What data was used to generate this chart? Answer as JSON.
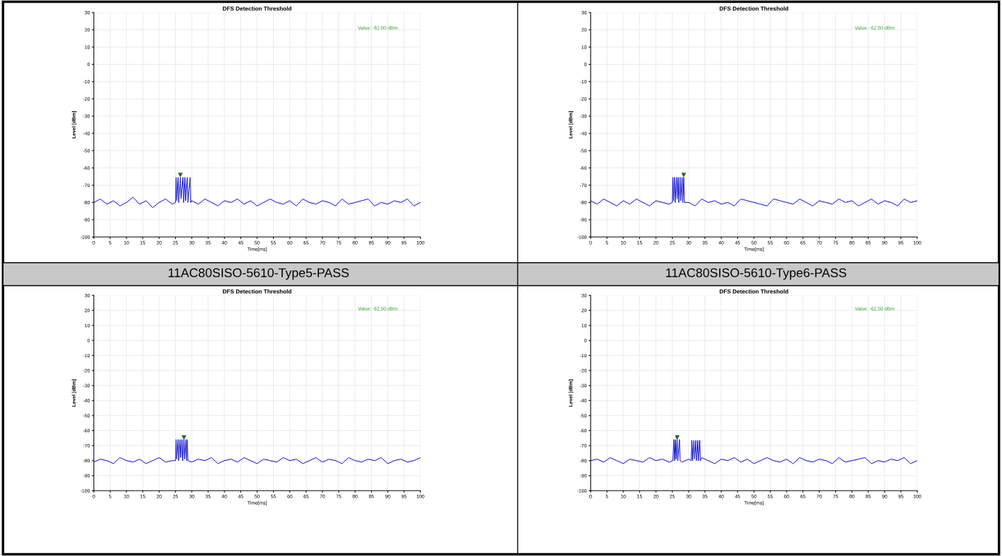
{
  "chart_data": [
    {
      "type": "line",
      "title": "DFS Detection Threshold",
      "subtitle": "11AC80SISO-5610-Type5-PASS",
      "xlabel": "Time[ms]",
      "ylabel": "Level [dBm]",
      "annotations": [
        "Value: -62.60 dBm"
      ],
      "xlim": [
        0,
        100
      ],
      "ylim": [
        -100,
        30
      ],
      "xticks": [
        0,
        5,
        10,
        15,
        20,
        25,
        30,
        35,
        40,
        45,
        50,
        55,
        60,
        65,
        70,
        75,
        80,
        85,
        90,
        95,
        100
      ],
      "yticks": [
        -100,
        -90,
        -80,
        -70,
        -60,
        -50,
        -40,
        -30,
        -20,
        -10,
        0,
        10,
        20,
        30
      ],
      "grid": true,
      "series": [
        {
          "color": "#0000cc",
          "x": [
            0,
            2,
            4,
            6,
            8,
            10,
            12,
            14,
            16,
            18,
            20,
            22,
            24,
            25,
            25.2,
            25.4,
            25.8,
            26,
            26.5,
            26.7,
            27.3,
            27.5,
            27.9,
            28.1,
            28.6,
            28.8,
            29.5,
            29.7,
            30,
            32,
            34,
            36,
            38,
            40,
            42,
            44,
            46,
            48,
            50,
            52,
            54,
            56,
            58,
            60,
            62,
            64,
            66,
            68,
            70,
            72,
            74,
            76,
            78,
            80,
            82,
            84,
            86,
            88,
            90,
            92,
            94,
            96,
            98,
            100
          ],
          "values": [
            -80,
            -78,
            -81,
            -79,
            -82,
            -80,
            -77,
            -81,
            -79,
            -83,
            -80,
            -78,
            -81,
            -80,
            -65.5,
            -79,
            -65.5,
            -80,
            -65.5,
            -78,
            -65.5,
            -80,
            -65.5,
            -79,
            -65.5,
            -80,
            -65.5,
            -80,
            -79,
            -81,
            -78,
            -80,
            -82,
            -79,
            -80,
            -78,
            -81,
            -79,
            -82,
            -80,
            -78,
            -80,
            -81,
            -79,
            -82,
            -78,
            -80,
            -81,
            -79,
            -80,
            -82,
            -78,
            -81,
            -80,
            -79,
            -78,
            -82,
            -80,
            -81,
            -79,
            -80,
            -78,
            -82,
            -80
          ]
        },
        {
          "type": "scatter",
          "marker": "triangle",
          "color": "#336633",
          "x": [
            26.5
          ],
          "values": [
            -64
          ]
        }
      ]
    },
    {
      "type": "line",
      "title": "DFS Detection Threshold",
      "subtitle": "11AC80SISO-5610-Type6-PASS",
      "xlabel": "Time[ms]",
      "ylabel": "Level [dBm]",
      "annotations": [
        "Value: -62.50 dBm"
      ],
      "xlim": [
        0,
        100
      ],
      "ylim": [
        -100,
        30
      ],
      "xticks": [
        0,
        5,
        10,
        15,
        20,
        25,
        30,
        35,
        40,
        45,
        50,
        55,
        60,
        65,
        70,
        75,
        80,
        85,
        90,
        95,
        100
      ],
      "yticks": [
        -100,
        -90,
        -80,
        -70,
        -60,
        -50,
        -40,
        -30,
        -20,
        -10,
        0,
        10,
        20,
        30
      ],
      "grid": true,
      "series": [
        {
          "color": "#0000cc",
          "x": [
            0,
            2,
            4,
            6,
            8,
            10,
            12,
            14,
            16,
            18,
            20,
            22,
            24,
            25,
            25.2,
            25.4,
            25.7,
            25.9,
            26.3,
            26.5,
            26.8,
            27,
            27.4,
            27.6,
            28,
            28.2,
            28.5,
            28.7,
            30,
            32,
            34,
            36,
            38,
            40,
            42,
            44,
            46,
            48,
            50,
            52,
            54,
            56,
            58,
            60,
            62,
            64,
            66,
            68,
            70,
            72,
            74,
            76,
            78,
            80,
            82,
            84,
            86,
            88,
            90,
            92,
            94,
            96,
            98,
            100
          ],
          "values": [
            -79,
            -81,
            -78,
            -80,
            -82,
            -79,
            -81,
            -78,
            -80,
            -82,
            -79,
            -80,
            -81,
            -80,
            -65.5,
            -79,
            -65.5,
            -80,
            -65.5,
            -78,
            -65.5,
            -80,
            -65.5,
            -79,
            -65.5,
            -80,
            -65.5,
            -80,
            -80,
            -82,
            -78,
            -80,
            -79,
            -81,
            -80,
            -82,
            -78,
            -79,
            -80,
            -81,
            -82,
            -78,
            -79,
            -80,
            -81,
            -78,
            -80,
            -82,
            -79,
            -80,
            -81,
            -78,
            -80,
            -79,
            -82,
            -80,
            -78,
            -81,
            -79,
            -80,
            -82,
            -78,
            -80,
            -79
          ]
        },
        {
          "type": "scatter",
          "marker": "triangle",
          "color": "#336633",
          "x": [
            28.5
          ],
          "values": [
            -64
          ]
        }
      ]
    },
    {
      "type": "line",
      "title": "DFS Detection Threshold",
      "xlabel": "Time[ms]",
      "ylabel": "Level [dBm]",
      "annotations": [
        "Value: -62.50 dBm"
      ],
      "xlim": [
        0,
        100
      ],
      "ylim": [
        -100,
        30
      ],
      "xticks": [
        0,
        5,
        10,
        15,
        20,
        25,
        30,
        35,
        40,
        45,
        50,
        55,
        60,
        65,
        70,
        75,
        80,
        85,
        90,
        95,
        100
      ],
      "yticks": [
        -100,
        -90,
        -80,
        -70,
        -60,
        -50,
        -40,
        -30,
        -20,
        -10,
        0,
        10,
        20,
        30
      ],
      "grid": true,
      "series": [
        {
          "color": "#0000cc",
          "x": [
            0,
            2,
            4,
            6,
            8,
            10,
            12,
            14,
            16,
            18,
            20,
            22,
            24,
            25,
            25.2,
            25.4,
            25.8,
            26,
            26.4,
            26.6,
            27,
            27.2,
            27.6,
            27.8,
            28.2,
            28.4,
            28.6,
            28.8,
            30,
            32,
            34,
            36,
            38,
            40,
            42,
            44,
            46,
            48,
            50,
            52,
            54,
            56,
            58,
            60,
            62,
            64,
            66,
            68,
            70,
            72,
            74,
            76,
            78,
            80,
            82,
            84,
            86,
            88,
            90,
            92,
            94,
            96,
            98,
            100
          ],
          "values": [
            -81,
            -79,
            -80,
            -82,
            -78,
            -80,
            -81,
            -79,
            -82,
            -80,
            -78,
            -81,
            -80,
            -80,
            -66,
            -79,
            -66,
            -80,
            -66,
            -78,
            -66,
            -80,
            -66,
            -79,
            -66,
            -80,
            -66,
            -80,
            -81,
            -79,
            -80,
            -78,
            -82,
            -80,
            -79,
            -81,
            -78,
            -80,
            -82,
            -79,
            -80,
            -81,
            -78,
            -80,
            -79,
            -82,
            -80,
            -78,
            -81,
            -79,
            -80,
            -82,
            -78,
            -80,
            -81,
            -79,
            -80,
            -78,
            -82,
            -80,
            -79,
            -81,
            -80,
            -78
          ]
        },
        {
          "type": "scatter",
          "marker": "triangle",
          "color": "#336633",
          "x": [
            27.6
          ],
          "values": [
            -64.5
          ]
        }
      ]
    },
    {
      "type": "line",
      "title": "DFS Detection Threshold",
      "xlabel": "Time[ms]",
      "ylabel": "Level [dBm]",
      "annotations": [
        "Value: -62.50 dBm"
      ],
      "xlim": [
        0,
        100
      ],
      "ylim": [
        -100,
        30
      ],
      "xticks": [
        0,
        5,
        10,
        15,
        20,
        25,
        30,
        35,
        40,
        45,
        50,
        55,
        60,
        65,
        70,
        75,
        80,
        85,
        90,
        95,
        100
      ],
      "yticks": [
        -100,
        -90,
        -80,
        -70,
        -60,
        -50,
        -40,
        -30,
        -20,
        -10,
        0,
        10,
        20,
        30
      ],
      "grid": true,
      "series": [
        {
          "color": "#0000cc",
          "x": [
            0,
            2,
            4,
            6,
            8,
            10,
            12,
            14,
            16,
            18,
            20,
            22,
            24,
            25.2,
            25.5,
            25.7,
            26,
            26.2,
            26.5,
            26.7,
            27.2,
            27.4,
            28,
            30,
            30.8,
            31,
            31.2,
            31.6,
            31.8,
            32.2,
            32.4,
            32.8,
            33,
            33.4,
            33.6,
            34,
            36,
            38,
            40,
            42,
            44,
            46,
            48,
            50,
            52,
            54,
            56,
            58,
            60,
            62,
            64,
            66,
            68,
            70,
            72,
            74,
            76,
            78,
            80,
            82,
            84,
            86,
            88,
            90,
            92,
            94,
            96,
            98,
            100
          ],
          "values": [
            -80,
            -79,
            -81,
            -78,
            -80,
            -82,
            -79,
            -80,
            -81,
            -78,
            -80,
            -79,
            -81,
            -80,
            -66,
            -80,
            -66,
            -79,
            -66,
            -80,
            -66,
            -80,
            -81,
            -79,
            -80,
            -66.5,
            -80,
            -66.5,
            -79,
            -66.5,
            -80,
            -66.5,
            -80,
            -66.5,
            -80,
            -78,
            -80,
            -82,
            -79,
            -80,
            -78,
            -81,
            -79,
            -82,
            -80,
            -78,
            -80,
            -81,
            -79,
            -82,
            -78,
            -80,
            -81,
            -79,
            -80,
            -82,
            -78,
            -81,
            -80,
            -79,
            -78,
            -82,
            -80,
            -81,
            -79,
            -80,
            -78,
            -82,
            -80
          ]
        },
        {
          "type": "scatter",
          "marker": "triangle",
          "color": "#336633",
          "x": [
            26.5
          ],
          "values": [
            -64.5
          ]
        }
      ]
    }
  ]
}
